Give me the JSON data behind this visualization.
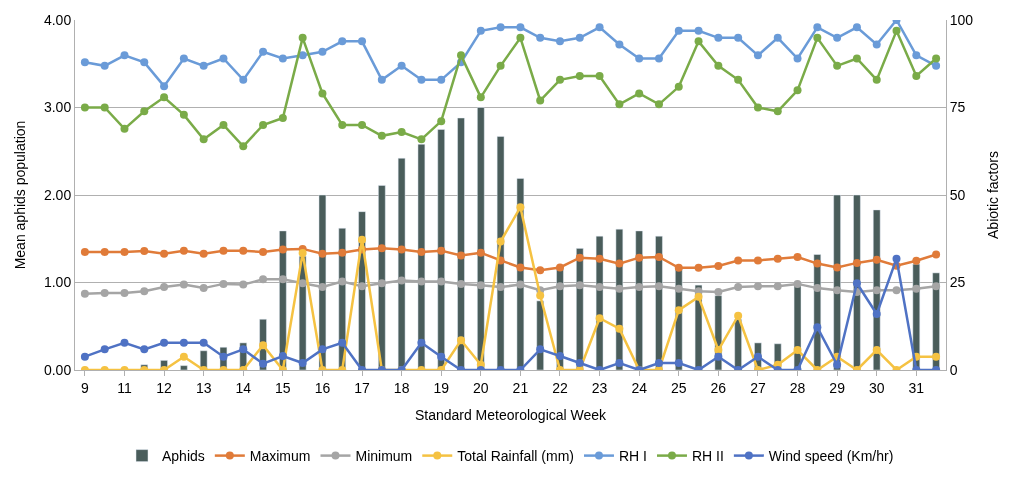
{
  "chart_data": {
    "type": "bar",
    "xlabel": "Standard Meteorological Week",
    "ylabel": "Mean aphids population",
    "y2label": "Abiotic factors",
    "categories": [
      "9",
      null,
      "11",
      null,
      "12",
      null,
      "13",
      null,
      "14",
      null,
      "15",
      null,
      "16",
      null,
      "17",
      null,
      "18",
      null,
      "19",
      null,
      "20",
      null,
      "21",
      null,
      "22",
      null,
      "23",
      null,
      "24",
      null,
      "25",
      null,
      "26",
      null,
      "27",
      null,
      "28",
      null,
      "29",
      null,
      "30",
      null,
      "31",
      null
    ],
    "ylim": [
      0,
      4
    ],
    "yticks": [
      {
        "value": 0,
        "label": "0.00"
      },
      {
        "value": 1,
        "label": "1.00"
      },
      {
        "value": 2,
        "label": "2.00"
      },
      {
        "value": 3,
        "label": "3.00"
      },
      {
        "value": 4,
        "label": "4.00"
      }
    ],
    "y2lim": [
      0,
      100
    ],
    "y2ticks": [
      0,
      25,
      50,
      75,
      100
    ],
    "grid": "y",
    "legend": "bottom",
    "marker": "circle",
    "series": [
      {
        "name": "Aphids",
        "color": "#4a5d5b",
        "values": [
          null,
          null,
          null,
          0.06,
          0.11,
          0.05,
          0.22,
          0.26,
          0.31,
          0.58,
          1.59,
          1.3,
          2.0,
          1.62,
          1.81,
          2.11,
          2.42,
          2.58,
          2.75,
          2.88,
          3.0,
          2.67,
          2.19,
          0.79,
          1.18,
          1.39,
          1.53,
          1.61,
          1.59,
          1.53,
          1.16,
          0.97,
          0.85,
          0.58,
          0.31,
          0.3,
          1.0,
          1.32,
          2.0,
          2.0,
          1.83,
          null,
          1.21,
          1.11
        ]
      },
      {
        "name": "Maximum",
        "type": "line",
        "axis": "y2",
        "color": "#e07b39",
        "values": [
          33.7,
          33.7,
          33.7,
          34.0,
          33.2,
          34.1,
          33.2,
          34.1,
          34.1,
          33.7,
          34.4,
          34.6,
          33.2,
          33.5,
          34.4,
          34.8,
          34.4,
          33.7,
          34.1,
          32.7,
          33.5,
          31.3,
          29.3,
          28.5,
          29.3,
          32.1,
          31.8,
          30.4,
          32.1,
          32.3,
          29.2,
          29.2,
          29.7,
          31.3,
          31.3,
          31.8,
          32.3,
          30.4,
          29.3,
          30.6,
          31.5,
          29.8,
          31.2,
          33.0
        ]
      },
      {
        "name": "Minimum",
        "type": "line",
        "axis": "y2",
        "color": "#a5a5a5",
        "values": [
          21.8,
          22.0,
          22.0,
          22.5,
          23.7,
          24.4,
          23.4,
          24.6,
          24.4,
          25.9,
          25.9,
          24.8,
          23.7,
          25.3,
          23.9,
          24.8,
          25.6,
          25.3,
          25.3,
          24.6,
          24.2,
          23.7,
          24.4,
          22.8,
          23.9,
          24.2,
          23.7,
          23.2,
          23.7,
          23.9,
          23.2,
          22.5,
          22.3,
          23.7,
          23.9,
          23.9,
          24.6,
          23.4,
          22.8,
          22.3,
          22.8,
          22.8,
          23.2,
          23.9
        ]
      },
      {
        "name": "Total Rainfall (mm)",
        "type": "line",
        "axis": "y2",
        "color": "#f5c242",
        "values": [
          0,
          0,
          0,
          0,
          0,
          3.8,
          0,
          0,
          0,
          7.1,
          0,
          33.4,
          0,
          0,
          37.2,
          0,
          0,
          0,
          0,
          8.5,
          1.5,
          36.7,
          46.5,
          21.3,
          0,
          0,
          14.8,
          11.8,
          0,
          0,
          17.1,
          20.9,
          5.7,
          15.5,
          0,
          1.5,
          5.7,
          0,
          3.8,
          0,
          5.7,
          0,
          3.8,
          3.8
        ]
      },
      {
        "name": "RH I",
        "type": "line",
        "axis": "y2",
        "color": "#6a9bd8",
        "values": [
          87.9,
          86.9,
          89.9,
          87.9,
          81.1,
          89.0,
          86.9,
          89.0,
          82.9,
          90.9,
          89.0,
          89.9,
          90.9,
          93.9,
          93.9,
          82.9,
          86.9,
          82.9,
          82.9,
          87.9,
          96.9,
          97.9,
          97.9,
          94.9,
          93.9,
          94.9,
          97.9,
          93.0,
          89.0,
          89.0,
          96.9,
          96.9,
          94.9,
          94.9,
          89.9,
          94.9,
          89.0,
          97.9,
          94.9,
          97.9,
          93.0,
          100,
          89.9,
          86.9
        ]
      },
      {
        "name": "RH II",
        "type": "line",
        "axis": "y2",
        "color": "#7aab48",
        "values": [
          75.0,
          75.0,
          68.9,
          73.9,
          77.9,
          72.9,
          65.9,
          70.0,
          63.9,
          70.0,
          72.0,
          94.9,
          79.0,
          70.0,
          70.0,
          66.9,
          68.0,
          65.9,
          71.1,
          89.9,
          77.9,
          86.9,
          94.9,
          77.0,
          82.9,
          84.0,
          84.0,
          75.9,
          79.0,
          75.9,
          80.9,
          93.9,
          86.9,
          82.9,
          75.0,
          73.9,
          79.9,
          94.9,
          86.9,
          89.0,
          82.9,
          96.9,
          84.0,
          89.0
        ]
      },
      {
        "name": "Wind speed (Km/hr)",
        "type": "line",
        "axis": "y2",
        "color": "#4f72c4",
        "values": [
          3.8,
          5.9,
          7.8,
          5.9,
          7.8,
          7.8,
          7.8,
          3.8,
          5.9,
          1.8,
          4.0,
          2.0,
          5.9,
          7.8,
          0,
          0,
          0,
          7.8,
          3.8,
          0,
          0,
          0,
          0,
          5.9,
          4.0,
          2.0,
          0,
          2.0,
          0,
          2.0,
          2.0,
          0,
          3.8,
          0,
          3.8,
          0,
          0,
          12.2,
          1.5,
          24.8,
          16.0,
          31.8,
          0,
          0
        ]
      }
    ]
  }
}
